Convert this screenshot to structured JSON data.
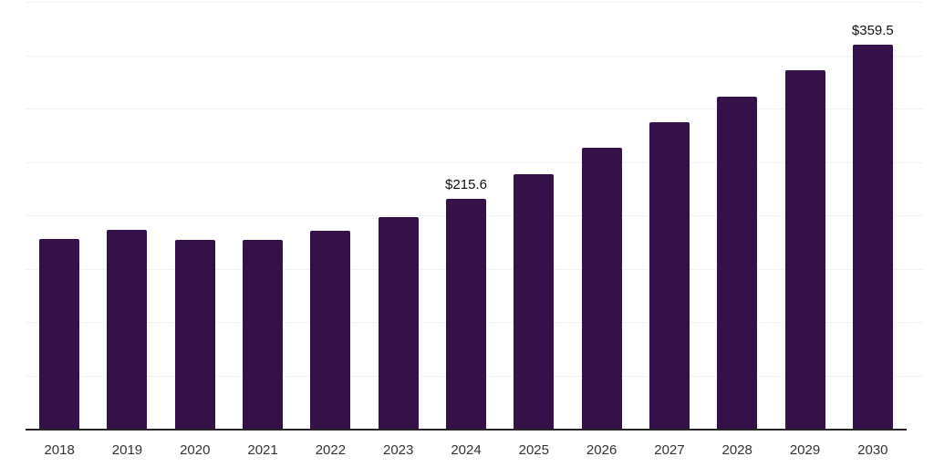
{
  "chart_data": {
    "type": "bar",
    "title": "",
    "xlabel": "",
    "ylabel": "",
    "categories": [
      "2018",
      "2019",
      "2020",
      "2021",
      "2022",
      "2023",
      "2024",
      "2025",
      "2026",
      "2027",
      "2028",
      "2029",
      "2030"
    ],
    "values": [
      178.0,
      186.0,
      176.5,
      177.1,
      185.8,
      198.0,
      215.6,
      238.6,
      263.4,
      287.6,
      311.3,
      336.0,
      359.5
    ],
    "value_labels": [
      null,
      null,
      null,
      null,
      null,
      null,
      "$215.6",
      null,
      null,
      null,
      null,
      null,
      "$359.5"
    ],
    "ylim": [
      0,
      400
    ],
    "gridline_step": 50,
    "grid": "horizontal-only",
    "legend_position": "none",
    "y_axis_tick_labels_visible": false,
    "bar_color": "#341249",
    "gridline_color": "#f2f2f2",
    "axis_line_color": "#262626",
    "value_label_color": "#111111",
    "category_label_color": "#333333"
  }
}
